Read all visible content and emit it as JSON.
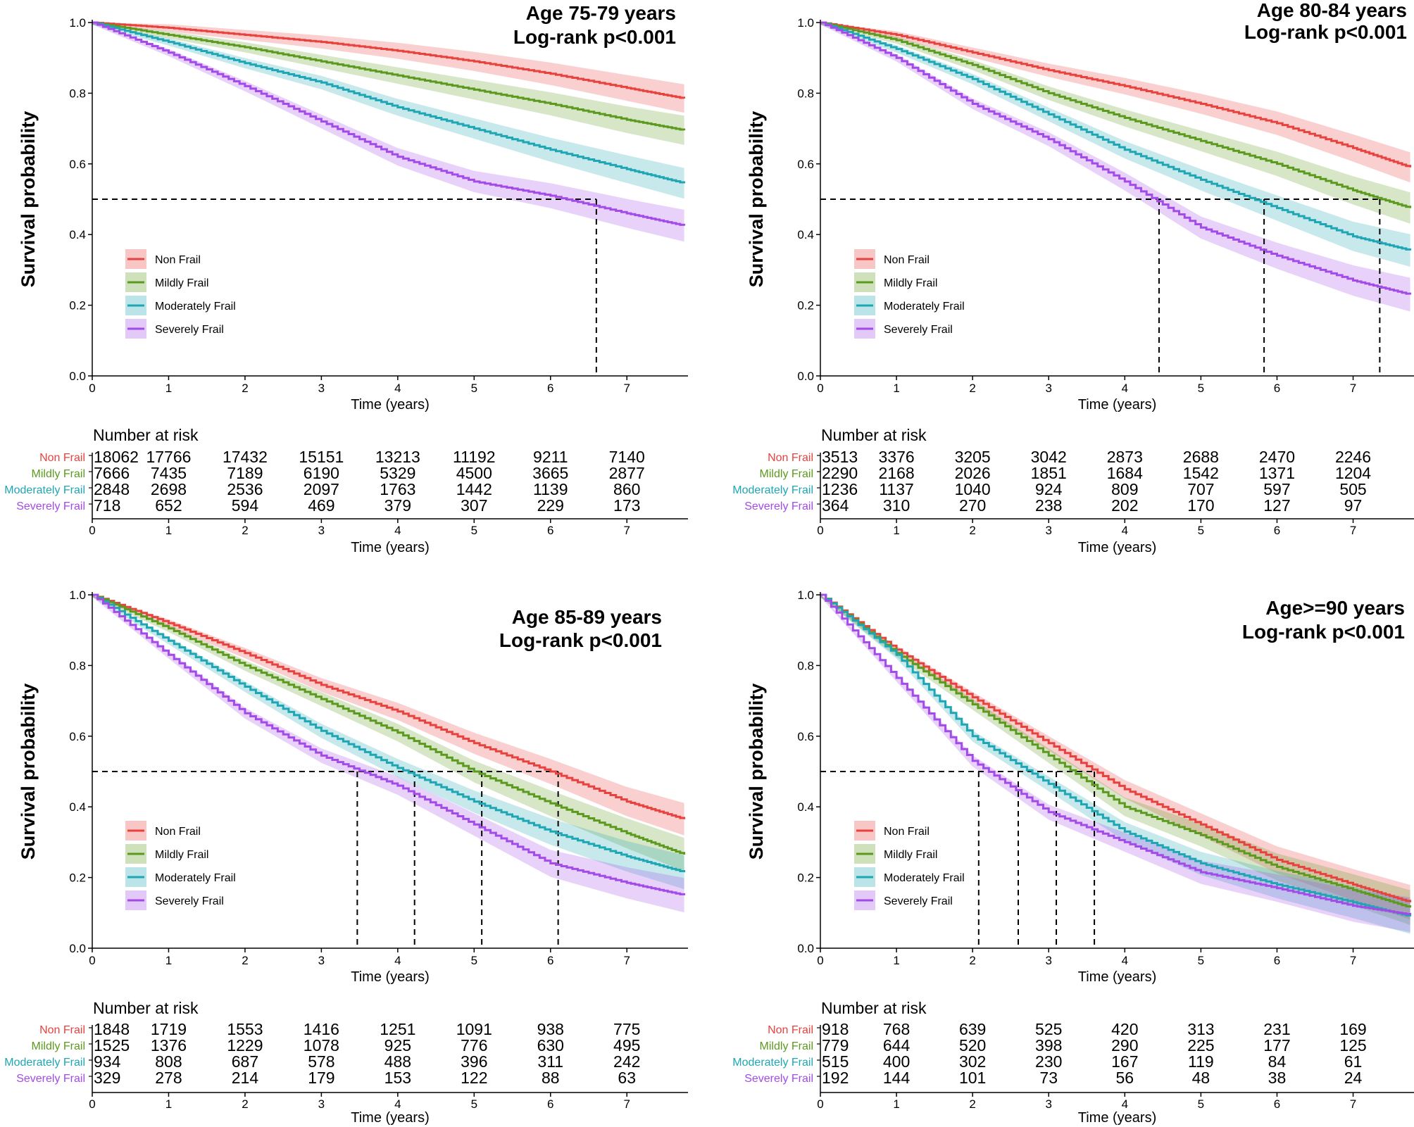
{
  "colors": {
    "non_frail": "#e8423e",
    "mildly_frail": "#5c9a1f",
    "moderately_frail": "#1fa6b4",
    "severely_frail": "#a24be8"
  },
  "chart_data": [
    {
      "type": "line",
      "title": "Age 75-79 years",
      "subtitle": "Log-rank p<0.001",
      "xlabel": "Time (years)",
      "ylabel": "Survival probability",
      "xlim": [
        0,
        7.8
      ],
      "ylim": [
        0,
        1
      ],
      "x_ticks": [
        "0",
        "1",
        "2",
        "3",
        "4",
        "5",
        "6",
        "7"
      ],
      "y_ticks": [
        "0.0",
        "0.2",
        "0.4",
        "0.6",
        "0.8",
        "1.0"
      ],
      "legend_position": "bottom-left",
      "median_survival": [
        6.6
      ],
      "series": [
        {
          "name": "Non Frail",
          "color_key": "non_frail",
          "x": [
            0,
            1,
            2,
            3,
            4,
            5,
            6,
            7,
            7.75
          ],
          "y": [
            1.0,
            0.985,
            0.965,
            0.945,
            0.92,
            0.89,
            0.855,
            0.815,
            0.785
          ]
        },
        {
          "name": "Mildly Frail",
          "color_key": "mildly_frail",
          "x": [
            0,
            1,
            2,
            3,
            4,
            5,
            6,
            7,
            7.75
          ],
          "y": [
            1.0,
            0.965,
            0.93,
            0.89,
            0.85,
            0.81,
            0.77,
            0.725,
            0.695
          ]
        },
        {
          "name": "Moderately Frail",
          "color_key": "moderately_frail",
          "x": [
            0,
            1,
            2,
            3,
            4,
            5,
            6,
            7,
            7.75
          ],
          "y": [
            1.0,
            0.945,
            0.885,
            0.83,
            0.76,
            0.7,
            0.64,
            0.585,
            0.545
          ]
        },
        {
          "name": "Severely Frail",
          "color_key": "severely_frail",
          "x": [
            0,
            1,
            2,
            3,
            4,
            5,
            6,
            7,
            7.75
          ],
          "y": [
            1.0,
            0.915,
            0.82,
            0.72,
            0.62,
            0.55,
            0.51,
            0.46,
            0.425
          ]
        }
      ],
      "risk_table": {
        "title": "Number at risk",
        "xlabel": "Time (years)",
        "rows": [
          {
            "label": "Non Frail",
            "color_key": "non_frail",
            "values": [
              "18062",
              "17766",
              "17432",
              "15151",
              "13213",
              "11192",
              "9211",
              "7140"
            ]
          },
          {
            "label": "Mildly Frail",
            "color_key": "mildly_frail",
            "values": [
              "7666",
              "7435",
              "7189",
              "6190",
              "5329",
              "4500",
              "3665",
              "2877"
            ]
          },
          {
            "label": "Moderately Frail",
            "color_key": "moderately_frail",
            "values": [
              "2848",
              "2698",
              "2536",
              "2097",
              "1763",
              "1442",
              "1139",
              "860"
            ]
          },
          {
            "label": "Severely Frail",
            "color_key": "severely_frail",
            "values": [
              "718",
              "652",
              "594",
              "469",
              "379",
              "307",
              "229",
              "173"
            ]
          }
        ]
      }
    },
    {
      "type": "line",
      "title": "Age 80-84 years",
      "subtitle": "Log-rank p<0.001",
      "xlabel": "Time (years)",
      "ylabel": "Survival probability",
      "xlim": [
        0,
        7.8
      ],
      "ylim": [
        0,
        1
      ],
      "x_ticks": [
        "0",
        "1",
        "2",
        "3",
        "4",
        "5",
        "6",
        "7"
      ],
      "y_ticks": [
        "0.0",
        "0.2",
        "0.4",
        "0.6",
        "0.8",
        "1.0"
      ],
      "legend_position": "bottom-left",
      "median_survival": [
        4.45,
        5.83,
        7.35
      ],
      "series": [
        {
          "name": "Non Frail",
          "color_key": "non_frail",
          "x": [
            0,
            1,
            2,
            3,
            4,
            5,
            6,
            7,
            7.75
          ],
          "y": [
            1.0,
            0.965,
            0.915,
            0.865,
            0.82,
            0.77,
            0.715,
            0.645,
            0.59
          ]
        },
        {
          "name": "Mildly Frail",
          "color_key": "mildly_frail",
          "x": [
            0,
            1,
            2,
            3,
            4,
            5,
            6,
            7,
            7.75
          ],
          "y": [
            1.0,
            0.95,
            0.88,
            0.8,
            0.73,
            0.665,
            0.6,
            0.525,
            0.475
          ]
        },
        {
          "name": "Moderately Frail",
          "color_key": "moderately_frail",
          "x": [
            0,
            1,
            2,
            3,
            4,
            5,
            6,
            7,
            7.75
          ],
          "y": [
            1.0,
            0.925,
            0.84,
            0.74,
            0.64,
            0.555,
            0.475,
            0.395,
            0.355
          ]
        },
        {
          "name": "Severely Frail",
          "color_key": "severely_frail",
          "x": [
            0,
            1,
            2,
            3,
            4,
            5,
            6,
            7,
            7.75
          ],
          "y": [
            1.0,
            0.9,
            0.77,
            0.67,
            0.55,
            0.42,
            0.34,
            0.27,
            0.23
          ]
        }
      ],
      "risk_table": {
        "title": "Number at risk",
        "xlabel": "Time (years)",
        "rows": [
          {
            "label": "Non Frail",
            "color_key": "non_frail",
            "values": [
              "3513",
              "3376",
              "3205",
              "3042",
              "2873",
              "2688",
              "2470",
              "2246"
            ]
          },
          {
            "label": "Mildly Frail",
            "color_key": "mildly_frail",
            "values": [
              "2290",
              "2168",
              "2026",
              "1851",
              "1684",
              "1542",
              "1371",
              "1204"
            ]
          },
          {
            "label": "Moderately Frail",
            "color_key": "moderately_frail",
            "values": [
              "1236",
              "1137",
              "1040",
              "924",
              "809",
              "707",
              "597",
              "505"
            ]
          },
          {
            "label": "Severely Frail",
            "color_key": "severely_frail",
            "values": [
              "364",
              "310",
              "270",
              "238",
              "202",
              "170",
              "127",
              "97"
            ]
          }
        ]
      }
    },
    {
      "type": "line",
      "title": "Age 85-89 years",
      "subtitle": "Log-rank p<0.001",
      "xlabel": "Time (years)",
      "ylabel": "Survival probability",
      "xlim": [
        0,
        7.8
      ],
      "ylim": [
        0,
        1
      ],
      "x_ticks": [
        "0",
        "1",
        "2",
        "3",
        "4",
        "5",
        "6",
        "7"
      ],
      "y_ticks": [
        "0.0",
        "0.2",
        "0.4",
        "0.6",
        "0.8",
        "1.0"
      ],
      "legend_position": "bottom-left",
      "median_survival": [
        3.47,
        4.22,
        5.1,
        6.1
      ],
      "series": [
        {
          "name": "Non Frail",
          "color_key": "non_frail",
          "x": [
            0,
            1,
            2,
            3,
            4,
            5,
            6,
            7,
            7.75
          ],
          "y": [
            1.0,
            0.92,
            0.835,
            0.745,
            0.67,
            0.58,
            0.5,
            0.415,
            0.365
          ]
        },
        {
          "name": "Mildly Frail",
          "color_key": "mildly_frail",
          "x": [
            0,
            1,
            2,
            3,
            4,
            5,
            6,
            7,
            7.75
          ],
          "y": [
            1.0,
            0.905,
            0.8,
            0.705,
            0.61,
            0.5,
            0.41,
            0.325,
            0.265
          ]
        },
        {
          "name": "Moderately Frail",
          "color_key": "moderately_frail",
          "x": [
            0,
            1,
            2,
            3,
            4,
            5,
            6,
            7,
            7.75
          ],
          "y": [
            1.0,
            0.87,
            0.74,
            0.615,
            0.51,
            0.415,
            0.33,
            0.26,
            0.215
          ]
        },
        {
          "name": "Severely Frail",
          "color_key": "severely_frail",
          "x": [
            0,
            1,
            2,
            3,
            4,
            5,
            6,
            7,
            7.75
          ],
          "y": [
            1.0,
            0.83,
            0.665,
            0.545,
            0.46,
            0.35,
            0.24,
            0.185,
            0.15
          ]
        }
      ],
      "risk_table": {
        "title": "Number at risk",
        "xlabel": "Time (years)",
        "rows": [
          {
            "label": "Non Frail",
            "color_key": "non_frail",
            "values": [
              "1848",
              "1719",
              "1553",
              "1416",
              "1251",
              "1091",
              "938",
              "775"
            ]
          },
          {
            "label": "Mildly Frail",
            "color_key": "mildly_frail",
            "values": [
              "1525",
              "1376",
              "1229",
              "1078",
              "925",
              "776",
              "630",
              "495"
            ]
          },
          {
            "label": "Moderately Frail",
            "color_key": "moderately_frail",
            "values": [
              "934",
              "808",
              "687",
              "578",
              "488",
              "396",
              "311",
              "242"
            ]
          },
          {
            "label": "Severely Frail",
            "color_key": "severely_frail",
            "values": [
              "329",
              "278",
              "214",
              "179",
              "153",
              "122",
              "88",
              "63"
            ]
          }
        ]
      }
    },
    {
      "type": "line",
      "title": "Age>=90 years",
      "subtitle": "Log-rank p<0.001",
      "xlabel": "Time (years)",
      "ylabel": "Survival probability",
      "xlim": [
        0,
        7.8
      ],
      "ylim": [
        0,
        1
      ],
      "x_ticks": [
        "0",
        "1",
        "2",
        "3",
        "4",
        "5",
        "6",
        "7"
      ],
      "y_ticks": [
        "0.0",
        "0.2",
        "0.4",
        "0.6",
        "0.8",
        "1.0"
      ],
      "legend_position": "bottom-left",
      "median_survival": [
        2.08,
        2.6,
        3.1,
        3.6
      ],
      "series": [
        {
          "name": "Non Frail",
          "color_key": "non_frail",
          "x": [
            0,
            1,
            2,
            3,
            4,
            5,
            6,
            7,
            7.75
          ],
          "y": [
            1.0,
            0.845,
            0.71,
            0.58,
            0.45,
            0.35,
            0.25,
            0.18,
            0.13
          ]
        },
        {
          "name": "Mildly Frail",
          "color_key": "mildly_frail",
          "x": [
            0,
            1,
            2,
            3,
            4,
            5,
            6,
            7,
            7.75
          ],
          "y": [
            1.0,
            0.835,
            0.69,
            0.545,
            0.4,
            0.32,
            0.23,
            0.165,
            0.115
          ]
        },
        {
          "name": "Moderately Frail",
          "color_key": "moderately_frail",
          "x": [
            0,
            1,
            2,
            3,
            4,
            5,
            6,
            7,
            7.75
          ],
          "y": [
            1.0,
            0.83,
            0.6,
            0.465,
            0.33,
            0.24,
            0.18,
            0.13,
            0.09
          ]
        },
        {
          "name": "Severely Frail",
          "color_key": "severely_frail",
          "x": [
            0,
            1,
            2,
            3,
            4,
            5,
            6,
            7,
            7.75
          ],
          "y": [
            1.0,
            0.765,
            0.53,
            0.385,
            0.3,
            0.215,
            0.17,
            0.12,
            0.095
          ]
        }
      ],
      "risk_table": {
        "title": "Number at risk",
        "xlabel": "Time (years)",
        "rows": [
          {
            "label": "Non Frail",
            "color_key": "non_frail",
            "values": [
              "918",
              "768",
              "639",
              "525",
              "420",
              "313",
              "231",
              "169"
            ]
          },
          {
            "label": "Mildly Frail",
            "color_key": "mildly_frail",
            "values": [
              "779",
              "644",
              "520",
              "398",
              "290",
              "225",
              "177",
              "125"
            ]
          },
          {
            "label": "Moderately Frail",
            "color_key": "moderately_frail",
            "values": [
              "515",
              "400",
              "302",
              "230",
              "167",
              "119",
              "84",
              "61"
            ]
          },
          {
            "label": "Severely Frail",
            "color_key": "severely_frail",
            "values": [
              "192",
              "144",
              "101",
              "73",
              "56",
              "48",
              "38",
              "24"
            ]
          }
        ]
      }
    }
  ]
}
